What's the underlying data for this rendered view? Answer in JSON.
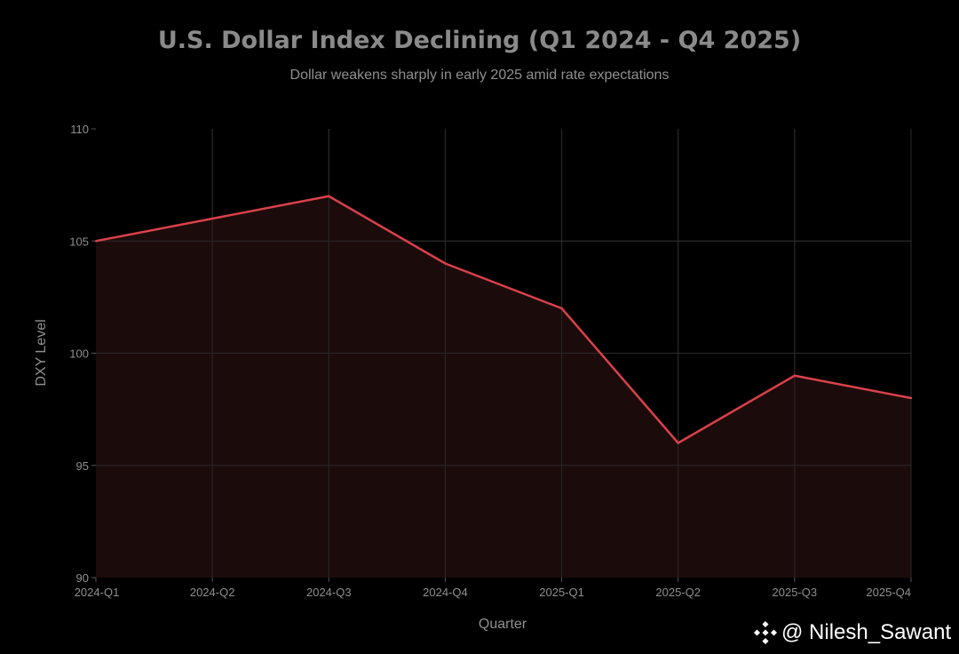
{
  "chart_data": {
    "type": "area",
    "title": "U.S. Dollar Index Declining (Q1 2024 - Q4 2025)",
    "subtitle": "Dollar weakens sharply in early 2025 amid rate expectations",
    "xlabel": "Quarter",
    "ylabel": "DXY Level",
    "categories": [
      "2024-Q1",
      "2024-Q2",
      "2024-Q3",
      "2024-Q4",
      "2025-Q1",
      "2025-Q2",
      "2025-Q3",
      "2025-Q4"
    ],
    "series": [
      {
        "name": "DXY Level",
        "values": [
          105,
          106,
          107,
          104,
          102,
          96,
          99,
          98
        ]
      }
    ],
    "ylim": [
      90,
      110
    ],
    "yticks": [
      90,
      95,
      100,
      105,
      110
    ],
    "grid": true,
    "colors": {
      "line": "#d9414a",
      "fill": "#1e0c0c",
      "grid": "#2c2c2c",
      "text": "#8f8f8f"
    }
  },
  "watermark": {
    "text": "@ Nilesh_Sawant",
    "icon": "binance-diamond-icon"
  }
}
